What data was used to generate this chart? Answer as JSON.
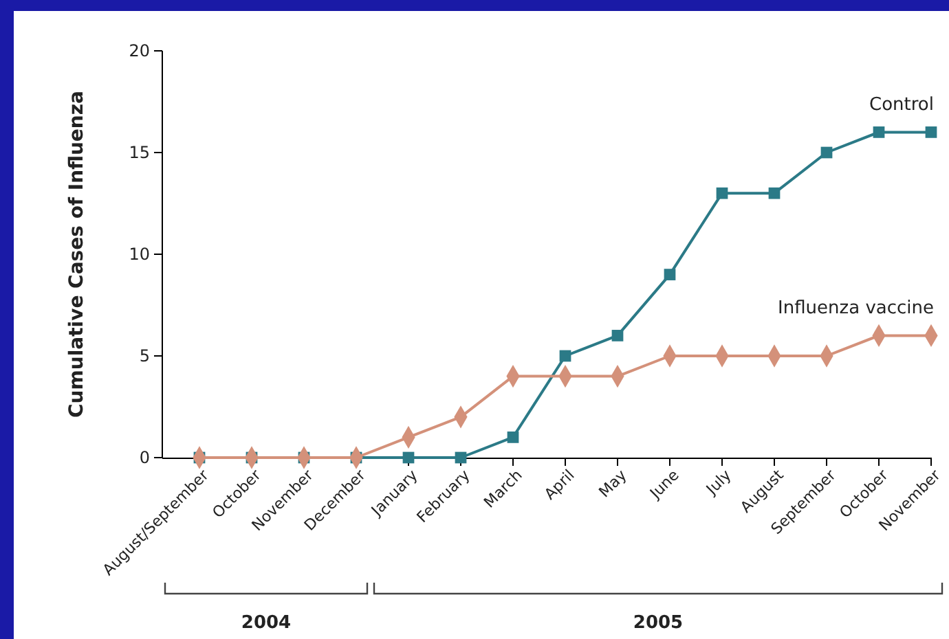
{
  "chart_data": {
    "type": "line",
    "ylabel": "Cumulative Cases of Influenza",
    "categories": [
      "August/September",
      "October",
      "November",
      "December",
      "January",
      "February",
      "March",
      "April",
      "May",
      "June",
      "July",
      "August",
      "September",
      "October",
      "November"
    ],
    "series": [
      {
        "name": "Control",
        "color": "#2b7a87",
        "marker": "square",
        "values": [
          0,
          0,
          0,
          0,
          0,
          0,
          1,
          5,
          6,
          9,
          13,
          13,
          15,
          16,
          16
        ]
      },
      {
        "name": "Influenza vaccine",
        "color": "#d4917a",
        "marker": "diamond",
        "values": [
          0,
          0,
          0,
          0,
          1,
          2,
          4,
          4,
          4,
          5,
          5,
          5,
          5,
          6,
          6
        ]
      }
    ],
    "ylim": [
      0,
      20
    ],
    "yticks": [
      0,
      5,
      10,
      15,
      20
    ],
    "grid": false,
    "line_style": "solid",
    "annotations": [
      "2004",
      "2005"
    ]
  }
}
